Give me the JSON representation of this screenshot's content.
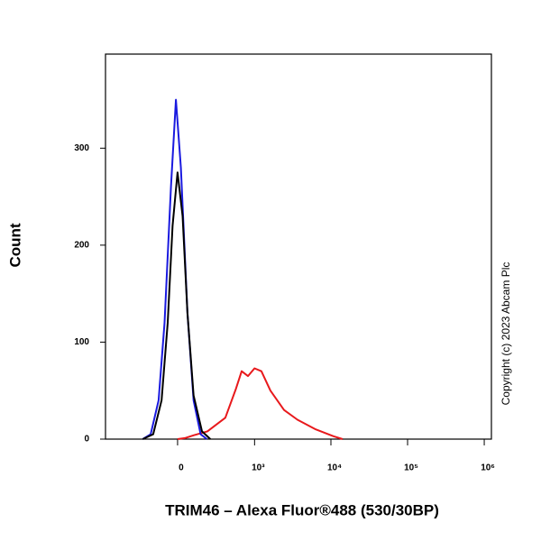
{
  "chart_data": {
    "type": "line",
    "x_label": "TRIM46 – Alexa Fluor®488 (530/30BP)",
    "y_label": "Count",
    "annotation": "Copyright (c) 2023 Abcam Plc",
    "xscale": "asinh",
    "xlim": [
      -860,
      1240000
    ],
    "xticks": [
      0,
      {
        "value": 1000,
        "label": "10³"
      },
      {
        "value": 10000,
        "label": "10⁴"
      },
      {
        "value": 100000,
        "label": "10⁵"
      },
      {
        "value": 1000000,
        "label": "10⁶"
      }
    ],
    "ylim": [
      0,
      397
    ],
    "yticks": [
      0,
      100,
      200,
      300
    ],
    "series": [
      {
        "color": "#e8191c",
        "x": [
          0,
          44,
          102,
          204,
          396,
          560,
          670,
          815,
          1000,
          1230,
          1620,
          2440,
          3660,
          6340,
          10800,
          14200
        ],
        "values": [
          0,
          1,
          4,
          8,
          22,
          52,
          70,
          65,
          73,
          70,
          50,
          30,
          20,
          10,
          3,
          0
        ]
      },
      {
        "color": "#1a1adf",
        "x": [
          -250,
          -180,
          -120,
          -80,
          -40,
          -10,
          20,
          60,
          100,
          150,
          200
        ],
        "values": [
          0,
          5,
          40,
          120,
          260,
          350,
          280,
          130,
          40,
          5,
          0
        ]
      },
      {
        "color": "#000000",
        "x": [
          -250,
          -160,
          -100,
          -60,
          -30,
          0,
          30,
          60,
          100,
          160,
          230
        ],
        "values": [
          0,
          5,
          40,
          120,
          220,
          275,
          230,
          130,
          45,
          8,
          0
        ]
      }
    ]
  }
}
